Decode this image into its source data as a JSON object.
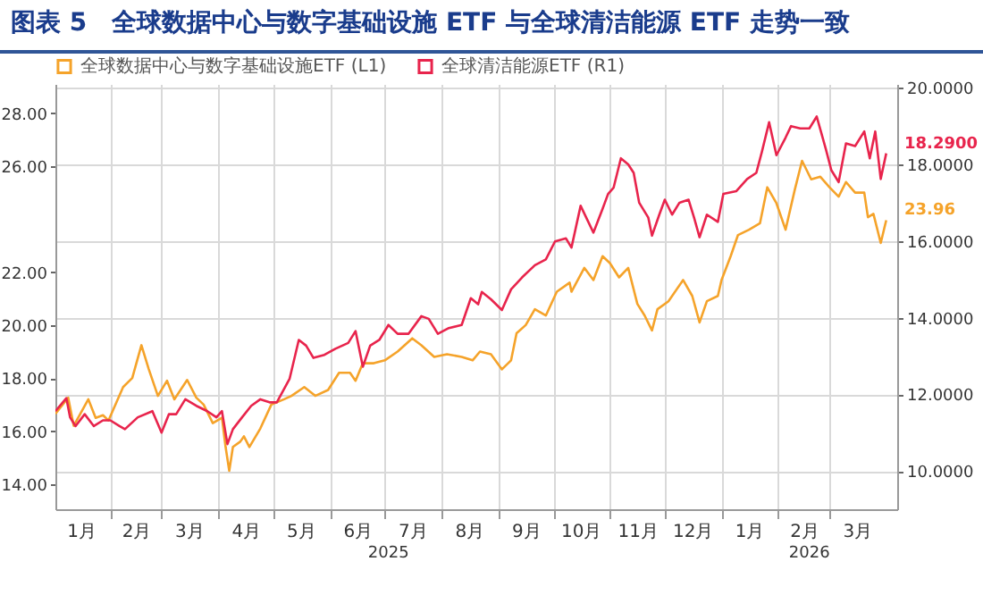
{
  "chart_data": {
    "type": "line",
    "title": "图表 5　全球数据中心与数字基础设施 ETF 与全球清洁能源 ETF 走势一致",
    "xlim": [
      "2025-01-02",
      "2026-04-07"
    ],
    "xticks": [
      {
        "value": "2025-01-16",
        "label": "1月"
      },
      {
        "value": "2025-02-01",
        "label": null
      },
      {
        "value": "2025-02-15",
        "label": "2月"
      },
      {
        "value": "2025-03-01",
        "label": null
      },
      {
        "value": "2025-03-16",
        "label": "3月"
      },
      {
        "value": "2025-04-01",
        "label": null
      },
      {
        "value": "2025-04-16",
        "label": "4月"
      },
      {
        "value": "2025-05-01",
        "label": null
      },
      {
        "value": "2025-05-16",
        "label": "5月"
      },
      {
        "value": "2025-06-01",
        "label": null
      },
      {
        "value": "2025-06-16",
        "label": "6月"
      },
      {
        "value": "2025-07-01",
        "label": null
      },
      {
        "value": "2025-07-16",
        "label": "7月"
      },
      {
        "value": "2025-08-01",
        "label": null
      },
      {
        "value": "2025-08-16",
        "label": "8月"
      },
      {
        "value": "2025-09-01",
        "label": null
      },
      {
        "value": "2025-09-16",
        "label": "9月"
      },
      {
        "value": "2025-10-01",
        "label": null
      },
      {
        "value": "2025-10-16",
        "label": "10月"
      },
      {
        "value": "2025-11-01",
        "label": null
      },
      {
        "value": "2025-11-16",
        "label": "11月"
      },
      {
        "value": "2025-12-01",
        "label": null
      },
      {
        "value": "2025-12-16",
        "label": "12月"
      },
      {
        "value": "2026-01-01",
        "label": null
      },
      {
        "value": "2026-01-16",
        "label": "1月"
      },
      {
        "value": "2026-02-01",
        "label": null
      },
      {
        "value": "2026-02-15",
        "label": "2月"
      },
      {
        "value": "2026-03-01",
        "label": null
      },
      {
        "value": "2026-03-16",
        "label": "3月"
      }
    ],
    "ylim": [
      13.05,
      29.1
    ],
    "yticks": [
      {
        "value": 14,
        "label": "14.00"
      },
      {
        "value": 16,
        "label": "16.00"
      },
      {
        "value": 18,
        "label": "18.00"
      },
      {
        "value": 20,
        "label": "20.00"
      },
      {
        "value": 22,
        "label": "22.00"
      },
      {
        "value": 26,
        "label": "26.00"
      },
      {
        "value": 28,
        "label": "28.00"
      }
    ],
    "y2lim": [
      9,
      20.1
    ],
    "y2ticks": [
      {
        "value": 10,
        "label": "10.0000"
      },
      {
        "value": 12,
        "label": "12.0000"
      },
      {
        "value": 14,
        "label": "14.0000"
      },
      {
        "value": 16,
        "label": "16.0000"
      },
      {
        "value": 18,
        "label": "18.0000"
      },
      {
        "value": 20,
        "label": "20.0000"
      }
    ],
    "annotations": [
      "2025",
      "2026"
    ],
    "grid": true,
    "legend": "top",
    "series": [
      {
        "name": "全球数据中心与数字基础设施ETF (L1)",
        "color": "#f5a32a",
        "axis": "y",
        "x": [
          "2025-01-02",
          "2025-01-09",
          "2025-01-12",
          "2025-01-20",
          "2025-01-24",
          "2025-01-28",
          "2025-01-31",
          "2025-02-08",
          "2025-02-13",
          "2025-02-18",
          "2025-02-22",
          "2025-02-27",
          "2025-03-04",
          "2025-03-08",
          "2025-03-15",
          "2025-03-20",
          "2025-03-24",
          "2025-03-29",
          "2025-04-03",
          "2025-04-05",
          "2025-04-07",
          "2025-04-09",
          "2025-04-13",
          "2025-04-15",
          "2025-04-18",
          "2025-04-24",
          "2025-04-30",
          "2025-05-07",
          "2025-05-11",
          "2025-05-18",
          "2025-05-24",
          "2025-05-31",
          "2025-06-06",
          "2025-06-12",
          "2025-06-15",
          "2025-06-19",
          "2025-06-25",
          "2025-07-01",
          "2025-07-08",
          "2025-07-16",
          "2025-07-21",
          "2025-07-28",
          "2025-08-04",
          "2025-08-12",
          "2025-08-18",
          "2025-08-22",
          "2025-08-28",
          "2025-09-03",
          "2025-09-08",
          "2025-09-11",
          "2025-09-16",
          "2025-09-21",
          "2025-09-27",
          "2025-10-03",
          "2025-10-10",
          "2025-10-11",
          "2025-10-18",
          "2025-10-23",
          "2025-10-28",
          "2025-11-01",
          "2025-11-06",
          "2025-11-11",
          "2025-11-16",
          "2025-11-20",
          "2025-11-24",
          "2025-11-27",
          "2025-12-03",
          "2025-12-11",
          "2025-12-16",
          "2025-12-20",
          "2025-12-24",
          "2025-12-30",
          "2026-01-01",
          "2026-01-06",
          "2026-01-10",
          "2026-01-16",
          "2026-01-22",
          "2026-01-26",
          "2026-01-31",
          "2026-02-05",
          "2026-02-10",
          "2026-02-14",
          "2026-02-19",
          "2026-02-24",
          "2026-03-01",
          "2026-03-06",
          "2026-03-10",
          "2026-03-15",
          "2026-03-20",
          "2026-03-22",
          "2026-03-25",
          "2026-03-29",
          "2026-04-01"
        ],
        "values": [
          16.65,
          17.26,
          16.2,
          17.2,
          16.5,
          16.6,
          16.4,
          17.66,
          18.0,
          19.24,
          18.34,
          17.33,
          17.9,
          17.2,
          17.93,
          17.26,
          17.0,
          16.3,
          16.5,
          15.4,
          14.5,
          15.4,
          15.6,
          15.8,
          15.4,
          16.1,
          17.0,
          17.2,
          17.33,
          17.66,
          17.33,
          17.55,
          18.2,
          18.2,
          17.9,
          18.56,
          18.56,
          18.67,
          19.0,
          19.5,
          19.24,
          18.8,
          18.9,
          18.8,
          18.67,
          19.0,
          18.9,
          18.33,
          18.67,
          19.69,
          20.0,
          20.6,
          20.36,
          21.26,
          21.6,
          21.26,
          22.16,
          21.7,
          22.6,
          22.34,
          21.8,
          22.16,
          20.8,
          20.36,
          19.8,
          20.6,
          20.9,
          21.7,
          21.1,
          20.1,
          20.9,
          21.1,
          21.7,
          22.6,
          23.4,
          23.6,
          23.84,
          25.2,
          24.6,
          23.6,
          25.1,
          26.2,
          25.5,
          25.6,
          25.2,
          24.85,
          25.4,
          25.0,
          25.0,
          24.07,
          24.2,
          23.1,
          23.96
        ],
        "value_labels": [
          null,
          null,
          null,
          null,
          null,
          null,
          null,
          null,
          null,
          null,
          null,
          null,
          null,
          null,
          null,
          null,
          null,
          null,
          null,
          null,
          null,
          null,
          null,
          null,
          null,
          null,
          null,
          null,
          null,
          null,
          null,
          null,
          null,
          null,
          null,
          null,
          null,
          null,
          null,
          null,
          null,
          null,
          null,
          null,
          null,
          null,
          null,
          null,
          null,
          null,
          null,
          null,
          null,
          null,
          null,
          null,
          null,
          null,
          null,
          null,
          null,
          null,
          null,
          null,
          null,
          null,
          null,
          null,
          null,
          null,
          null,
          null,
          null,
          null,
          null,
          null,
          null,
          null,
          null,
          null,
          null,
          null,
          null,
          null,
          null,
          null,
          null,
          null,
          null,
          null,
          null,
          null,
          "23.96"
        ]
      },
      {
        "name": "全球清洁能源ETF (R1)",
        "color": "#e8244c",
        "axis": "y2",
        "x": [
          "2025-01-02",
          "2025-01-08",
          "2025-01-10",
          "2025-01-13",
          "2025-01-18",
          "2025-01-23",
          "2025-01-28",
          "2025-02-01",
          "2025-02-06",
          "2025-02-09",
          "2025-02-16",
          "2025-02-24",
          "2025-03-01",
          "2025-03-05",
          "2025-03-09",
          "2025-03-14",
          "2025-03-20",
          "2025-03-26",
          "2025-03-31",
          "2025-04-03",
          "2025-04-06",
          "2025-04-09",
          "2025-04-14",
          "2025-04-19",
          "2025-04-24",
          "2025-04-29",
          "2025-05-03",
          "2025-05-10",
          "2025-05-15",
          "2025-05-19",
          "2025-05-23",
          "2025-05-29",
          "2025-06-04",
          "2025-06-11",
          "2025-06-15",
          "2025-06-19",
          "2025-06-23",
          "2025-06-28",
          "2025-07-03",
          "2025-07-08",
          "2025-07-14",
          "2025-07-21",
          "2025-07-25",
          "2025-07-30",
          "2025-08-05",
          "2025-08-12",
          "2025-08-17",
          "2025-08-21",
          "2025-08-23",
          "2025-08-28",
          "2025-09-03",
          "2025-09-08",
          "2025-09-14",
          "2025-09-21",
          "2025-09-27",
          "2025-10-02",
          "2025-10-08",
          "2025-10-11",
          "2025-10-16",
          "2025-10-23",
          "2025-10-28",
          "2025-10-31",
          "2025-11-03",
          "2025-11-07",
          "2025-11-11",
          "2025-11-14",
          "2025-11-17",
          "2025-11-22",
          "2025-11-24",
          "2025-11-28",
          "2025-12-01",
          "2025-12-05",
          "2025-12-09",
          "2025-12-14",
          "2025-12-17",
          "2025-12-20",
          "2025-12-24",
          "2025-12-30",
          "2026-01-02",
          "2026-01-09",
          "2026-01-15",
          "2026-01-20",
          "2026-01-23",
          "2026-01-27",
          "2026-01-31",
          "2026-02-05",
          "2026-02-08",
          "2026-02-13",
          "2026-02-18",
          "2026-02-22",
          "2026-02-27",
          "2026-03-02",
          "2026-03-06",
          "2026-03-10",
          "2026-03-15",
          "2026-03-20",
          "2026-03-23",
          "2026-03-26",
          "2026-03-29",
          "2026-04-01"
        ],
        "values": [
          11.56,
          11.9,
          11.4,
          11.17,
          11.48,
          11.17,
          11.32,
          11.32,
          11.17,
          11.09,
          11.4,
          11.56,
          11.0,
          11.48,
          11.48,
          11.87,
          11.7,
          11.56,
          11.4,
          11.56,
          10.7,
          11.09,
          11.4,
          11.7,
          11.87,
          11.79,
          11.79,
          12.41,
          13.42,
          13.27,
          12.95,
          13.03,
          13.19,
          13.34,
          13.65,
          12.72,
          13.27,
          13.42,
          13.81,
          13.58,
          13.58,
          14.04,
          13.97,
          13.58,
          13.73,
          13.81,
          14.51,
          14.35,
          14.67,
          14.48,
          14.2,
          14.74,
          15.05,
          15.37,
          15.52,
          15.99,
          16.07,
          15.83,
          16.92,
          16.22,
          16.84,
          17.23,
          17.39,
          18.16,
          18.0,
          17.78,
          17.0,
          16.61,
          16.14,
          16.69,
          17.08,
          16.69,
          17.0,
          17.08,
          16.61,
          16.1,
          16.69,
          16.5,
          17.23,
          17.3,
          17.62,
          17.78,
          18.32,
          19.1,
          18.24,
          18.7,
          19.0,
          18.94,
          18.94,
          19.25,
          18.4,
          17.85,
          17.54,
          18.55,
          18.48,
          18.86,
          18.16,
          18.86,
          17.62,
          18.29
        ],
        "value_labels": [
          null,
          null,
          null,
          null,
          null,
          null,
          null,
          null,
          null,
          null,
          null,
          null,
          null,
          null,
          null,
          null,
          null,
          null,
          null,
          null,
          null,
          null,
          null,
          null,
          null,
          null,
          null,
          null,
          null,
          null,
          null,
          null,
          null,
          null,
          null,
          null,
          null,
          null,
          null,
          null,
          null,
          null,
          null,
          null,
          null,
          null,
          null,
          null,
          null,
          null,
          null,
          null,
          null,
          null,
          null,
          null,
          null,
          null,
          null,
          null,
          null,
          null,
          null,
          null,
          null,
          null,
          null,
          null,
          null,
          null,
          null,
          null,
          null,
          null,
          null,
          null,
          null,
          null,
          null,
          null,
          null,
          null,
          null,
          null,
          null,
          null,
          null,
          null,
          null,
          null,
          null,
          null,
          null,
          null,
          null,
          null,
          null,
          null,
          null,
          "18.2900"
        ]
      }
    ]
  }
}
